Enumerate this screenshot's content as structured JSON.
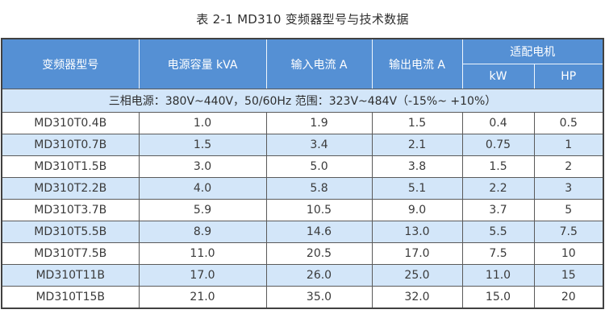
{
  "title": "表 2-1 MD310 变频器型号与技术数据",
  "table": {
    "headers": {
      "model": "变频器型号",
      "capacity_kva": "电源容量 kVA",
      "input_current_a": "输入电流 A",
      "output_current_a": "输出电流 A",
      "adapted_motor": "适配电机",
      "kw": "kW",
      "hp": "HP"
    },
    "power_note": "三相电源：380V~440V，50/60Hz 范围：323V~484V（-15%~ +10%）",
    "column_keys": [
      "model",
      "capacity-kva",
      "input-current-a",
      "output-current-a",
      "kw",
      "hp"
    ],
    "rows": [
      [
        "MD310T0.4B",
        "1.0",
        "1.9",
        "1.5",
        "0.4",
        "0.5"
      ],
      [
        "MD310T0.7B",
        "1.5",
        "3.4",
        "2.1",
        "0.75",
        "1"
      ],
      [
        "MD310T1.5B",
        "3.0",
        "5.0",
        "3.8",
        "1.5",
        "2"
      ],
      [
        "MD310T2.2B",
        "4.0",
        "5.8",
        "5.1",
        "2.2",
        "3"
      ],
      [
        "MD310T3.7B",
        "5.9",
        "10.5",
        "9.0",
        "3.7",
        "5"
      ],
      [
        "MD310T5.5B",
        "8.9",
        "14.6",
        "13.0",
        "5.5",
        "7.5"
      ],
      [
        "MD310T7.5B",
        "11.0",
        "20.5",
        "17.0",
        "7.5",
        "10"
      ],
      [
        "MD310T11B",
        "17.0",
        "26.0",
        "25.0",
        "11.0",
        "15"
      ],
      [
        "MD310T15B",
        "21.0",
        "35.0",
        "32.0",
        "15.0",
        "20"
      ]
    ]
  },
  "colors": {
    "header_bg": "#5590d4",
    "header_text": "#ffffff",
    "band_bg": "#d3e6f9",
    "stripe_bg": "#d3e6f9",
    "grid_line": "#5a5a5a",
    "outer_border": "#414141",
    "body_text": "#3a3a3a"
  }
}
